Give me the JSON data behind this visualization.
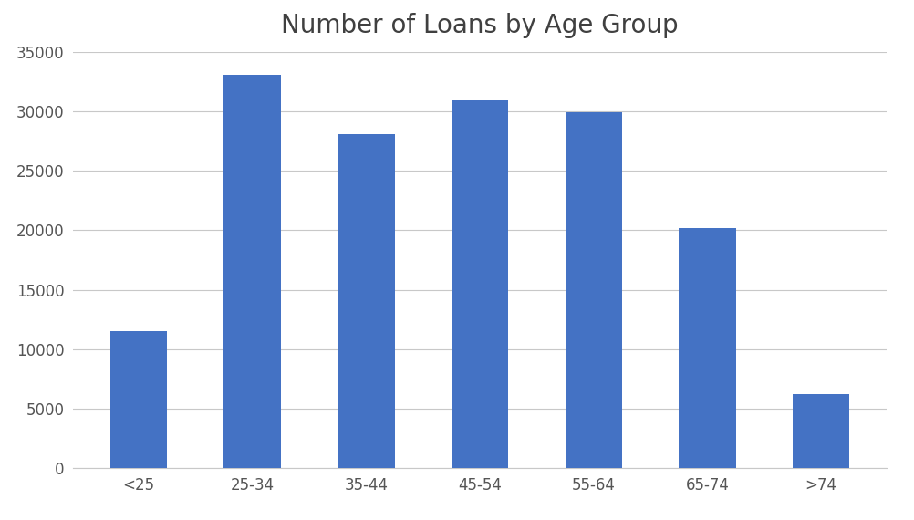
{
  "title": "Number of Loans by Age Group",
  "categories": [
    "<25",
    "25-34",
    "35-44",
    "45-54",
    "55-64",
    "65-74",
    ">74"
  ],
  "values": [
    11500,
    33100,
    28100,
    30900,
    29900,
    20200,
    6200
  ],
  "bar_color": "#4472C4",
  "ylim": [
    0,
    35000
  ],
  "yticks": [
    0,
    5000,
    10000,
    15000,
    20000,
    25000,
    30000,
    35000
  ],
  "title_fontsize": 20,
  "tick_fontsize": 12,
  "background_color": "#ffffff",
  "grid_color": "#c8c8c8",
  "bar_width": 0.5
}
